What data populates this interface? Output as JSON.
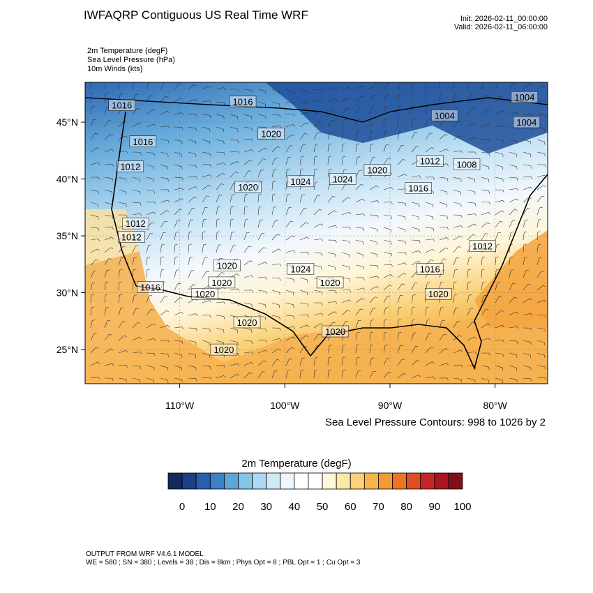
{
  "header": {
    "title": "IWFAQRP Contiguous US Real Time WRF",
    "init": "Init: 2026-02-11_00:00:00",
    "valid": "Valid: 2026-02-11_06:00:00",
    "fields": [
      "2m Temperature   (degF)",
      "Sea Level Pressure   (hPa)",
      "10m Winds   (kts)"
    ]
  },
  "map": {
    "lat_labels": [
      "45°N",
      "40°N",
      "35°N",
      "30°N",
      "25°N"
    ],
    "lon_labels": [
      "110°W",
      "100°W",
      "90°W",
      "80°W"
    ],
    "lat_values": [
      45,
      40,
      35,
      30,
      25
    ],
    "lon_values": [
      -110,
      -100,
      -90,
      -80
    ],
    "extent": {
      "lon_min": -119,
      "lon_max": -75,
      "lat_min": 22,
      "lat_max": 48.5
    },
    "pressure_labels": [
      {
        "text": "1016",
        "lon": -115.5,
        "lat": 46.5
      },
      {
        "text": "1016",
        "lon": -104,
        "lat": 46.8
      },
      {
        "text": "1020",
        "lon": -101.3,
        "lat": 44.0
      },
      {
        "text": "1016",
        "lon": -113.5,
        "lat": 43.3
      },
      {
        "text": "1012",
        "lon": -114.7,
        "lat": 41.1
      },
      {
        "text": "1020",
        "lon": -103.5,
        "lat": 39.3
      },
      {
        "text": "1024",
        "lon": -98.5,
        "lat": 39.8
      },
      {
        "text": "1024",
        "lon": -94.5,
        "lat": 40.0
      },
      {
        "text": "1020",
        "lon": -91.2,
        "lat": 40.8
      },
      {
        "text": "1012",
        "lon": -86.2,
        "lat": 41.6
      },
      {
        "text": "1008",
        "lon": -82.7,
        "lat": 41.3
      },
      {
        "text": "1004",
        "lon": -84.8,
        "lat": 45.6
      },
      {
        "text": "1004",
        "lon": -77.2,
        "lat": 47.2
      },
      {
        "text": "1004",
        "lon": -77.0,
        "lat": 45.0
      },
      {
        "text": "1016",
        "lon": -87.3,
        "lat": 39.2
      },
      {
        "text": "1012",
        "lon": -114.2,
        "lat": 36.1
      },
      {
        "text": "1012",
        "lon": -114.6,
        "lat": 34.9
      },
      {
        "text": "1020",
        "lon": -105.5,
        "lat": 32.4
      },
      {
        "text": "1024",
        "lon": -98.5,
        "lat": 32.1
      },
      {
        "text": "1016",
        "lon": -86.2,
        "lat": 32.1
      },
      {
        "text": "1012",
        "lon": -81.2,
        "lat": 34.1
      },
      {
        "text": "1020",
        "lon": -106.0,
        "lat": 30.9
      },
      {
        "text": "1016",
        "lon": -112.8,
        "lat": 30.5
      },
      {
        "text": "1020",
        "lon": -107.6,
        "lat": 29.9
      },
      {
        "text": "1020",
        "lon": -95.7,
        "lat": 30.9
      },
      {
        "text": "1020",
        "lon": -85.4,
        "lat": 29.9
      },
      {
        "text": "1020",
        "lon": -103.6,
        "lat": 27.4
      },
      {
        "text": "1020",
        "lon": -95.2,
        "lat": 26.6
      },
      {
        "text": "1020",
        "lon": -105.8,
        "lat": 25.0
      }
    ],
    "contour_note": "Sea Level Pressure Contours: 998 to 1026 by 2"
  },
  "colorbar": {
    "title": "2m Temperature  (degF)",
    "tick_labels": [
      "0",
      "10",
      "20",
      "30",
      "40",
      "50",
      "60",
      "70",
      "80",
      "90",
      "100"
    ],
    "colors": [
      "#142a5c",
      "#1d3f86",
      "#2660ac",
      "#3b82c4",
      "#5ea6d8",
      "#86c4e9",
      "#abd9f3",
      "#cfe9f8",
      "#edf6fc",
      "#ffffff",
      "#ffffff",
      "#fff7d8",
      "#fde8a8",
      "#fbd17a",
      "#f6b44c",
      "#f29a35",
      "#ea7525",
      "#e04d22",
      "#c82626",
      "#a9161f",
      "#801015"
    ]
  },
  "footer": {
    "line1": "OUTPUT FROM WRF V4.6.1 MODEL",
    "line2": "WE = 580 ; SN = 380 ; Levels = 38 ; Dis = 8km ; Phys Opt = 8 ; PBL Opt = 1 ; Cu Opt = 3"
  }
}
